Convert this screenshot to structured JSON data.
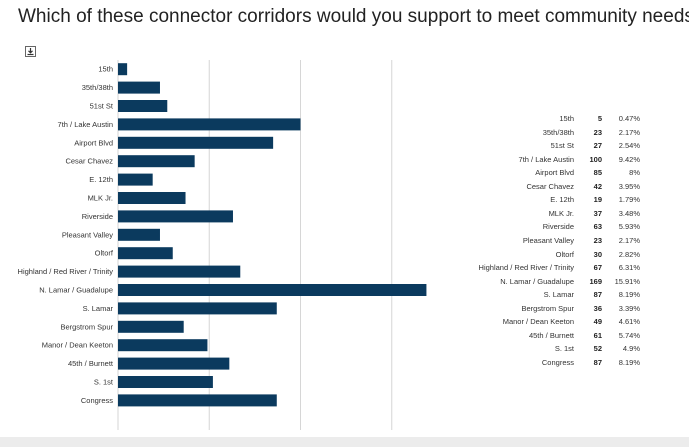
{
  "title": "Which of these connector corridors would you support to meet community needs?",
  "icons": {
    "download": "download-icon"
  },
  "colors": {
    "bar": "#0b3a5e",
    "grid": "#d6d6d6",
    "text": "#333333"
  },
  "chart_data": {
    "type": "bar",
    "orientation": "horizontal",
    "categories": [
      "15th",
      "35th/38th",
      "51st St",
      "7th / Lake Austin",
      "Airport Blvd",
      "Cesar Chavez",
      "E. 12th",
      "MLK Jr.",
      "Riverside",
      "Pleasant Valley",
      "Oltorf",
      "Highland / Red River / Trinity",
      "N. Lamar / Guadalupe",
      "S. Lamar",
      "Bergstrom Spur",
      "Manor / Dean Keeton",
      "45th / Burnett",
      "S. 1st",
      "Congress"
    ],
    "values": [
      5,
      23,
      27,
      100,
      85,
      42,
      19,
      37,
      63,
      23,
      30,
      67,
      169,
      87,
      36,
      49,
      61,
      52,
      87
    ],
    "percents": [
      "0.47%",
      "2.17%",
      "2.54%",
      "9.42%",
      "8%",
      "3.95%",
      "1.79%",
      "3.48%",
      "5.93%",
      "2.17%",
      "2.82%",
      "6.31%",
      "15.91%",
      "8.19%",
      "3.39%",
      "4.61%",
      "5.74%",
      "4.9%",
      "8.19%"
    ],
    "xlim": [
      0,
      200
    ],
    "grid": true
  }
}
